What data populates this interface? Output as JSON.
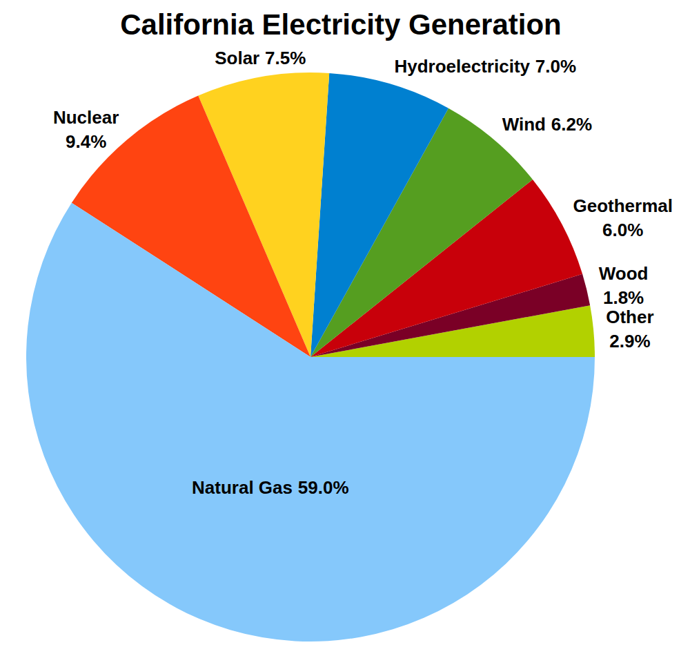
{
  "chart_data": {
    "type": "pie",
    "title": "California Electricity Generation",
    "categories": [
      "Other",
      "Wood",
      "Geothermal",
      "Wind",
      "Hydroelectricity",
      "Solar",
      "Nuclear",
      "Natural Gas"
    ],
    "values": [
      2.9,
      1.8,
      6.0,
      6.2,
      7.0,
      7.5,
      9.4,
      59.0
    ],
    "value_labels": [
      "2.9%",
      "1.8%",
      "6.0%",
      "6.2%",
      "7.0%",
      "7.5%",
      "9.4%",
      "59.0%"
    ],
    "colors": [
      "#b2d100",
      "#7a0026",
      "#c8000a",
      "#559e20",
      "#0080d0",
      "#ffd21f",
      "#ff4411",
      "#85c8fb"
    ],
    "data_labels": true
  }
}
